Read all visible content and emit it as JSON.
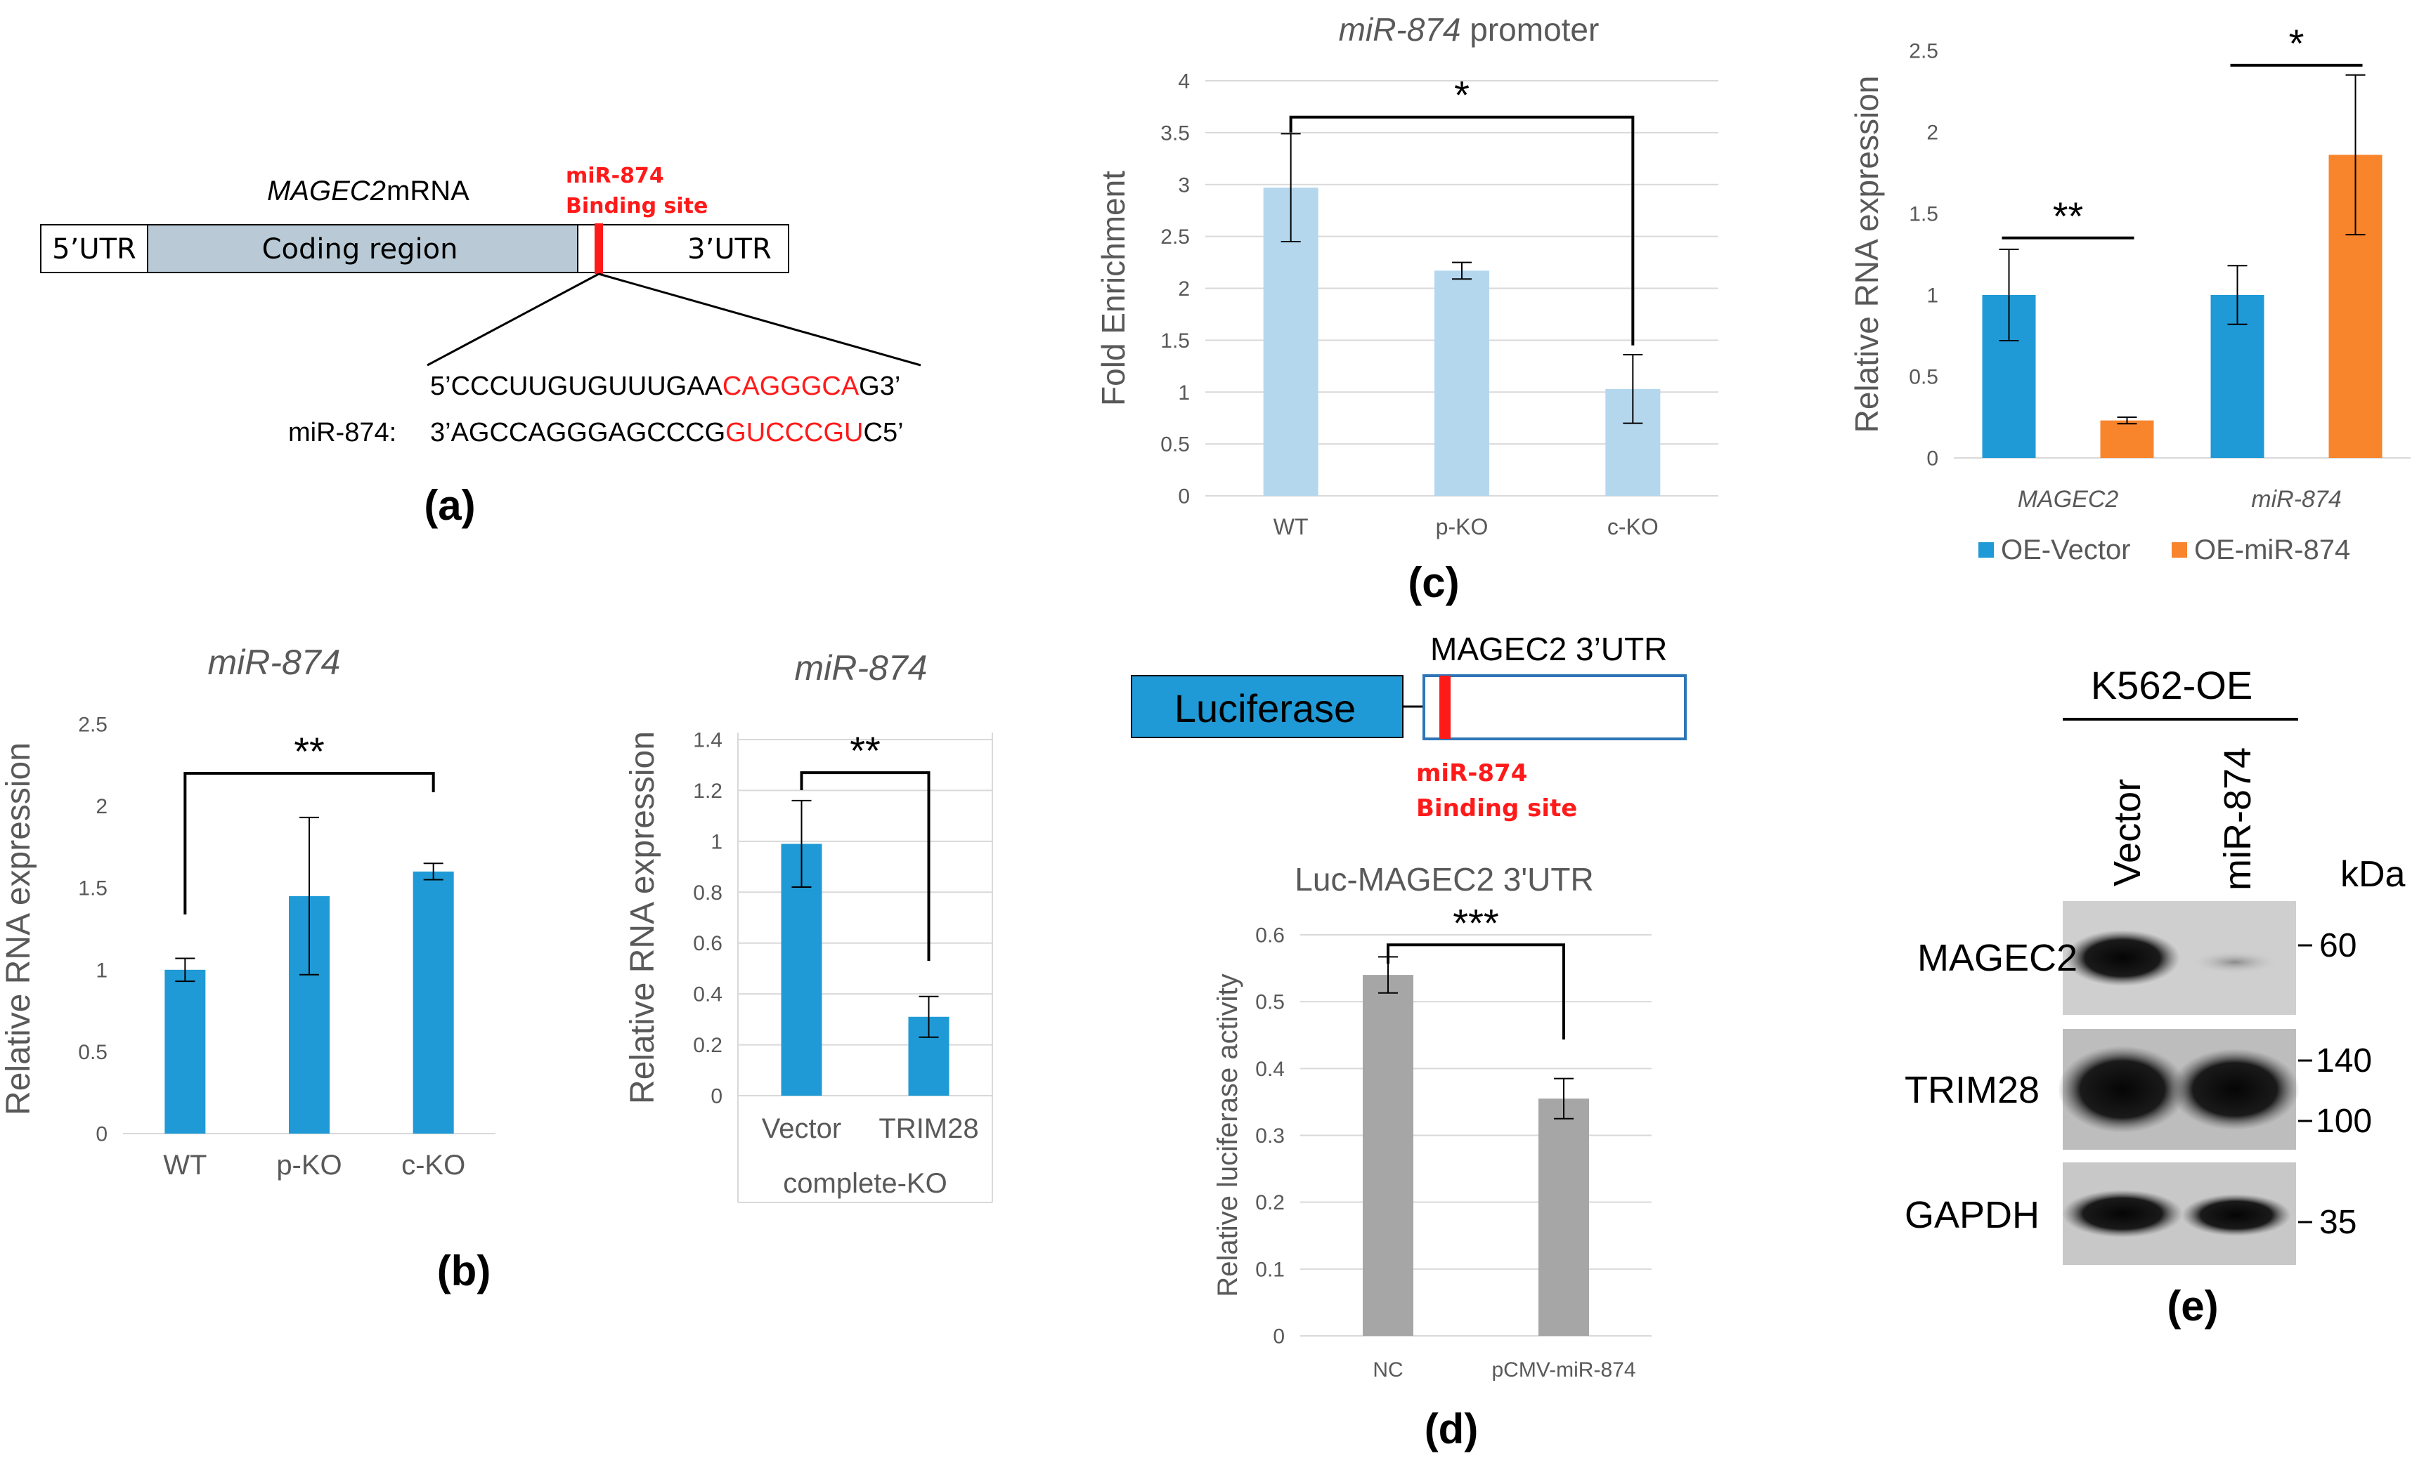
{
  "panel_labels": {
    "a": "(a)",
    "b": "(b)",
    "c": "(c)",
    "d": "(d)",
    "e": "(e)"
  },
  "colors": {
    "blue": "#1F9AD6",
    "lightblue": "#B4D7EE",
    "orange": "#F8842C",
    "gray": "#A6A6A6",
    "red": "#FF1A1A",
    "coding": "#B9CAD6"
  },
  "panel_a": {
    "title_italic": "MAGEC2",
    "title_rest": "mRNA",
    "utr5": "5’UTR",
    "coding": "Coding region",
    "utr3": "3’UTR",
    "binding_line1": "miR-874",
    "binding_line2": "Binding site",
    "seq_mrna_black": "5’CCCUUGUGUUUGAA",
    "seq_mrna_red": "CAGGGCA",
    "seq_mrna_end": "G3’",
    "mir_label": "miR-874:",
    "seq_mir_black": "3’AGCCAGGGAGCCCG",
    "seq_mir_red": "GUCCCGU",
    "seq_mir_end": "C5’"
  },
  "panel_d_construct": {
    "luciferase": "Luciferase",
    "utr_label": "MAGEC2 3’UTR",
    "binding_line1": "miR-874",
    "binding_line2": "Binding site"
  },
  "panel_e": {
    "title": "K562-OE",
    "lanes": [
      "Vector",
      "miR-874"
    ],
    "kda": "kDa",
    "proteins": [
      "MAGEC2",
      "TRIM28",
      "GAPDH"
    ],
    "markers": [
      "60",
      "140",
      "100",
      "35"
    ]
  },
  "chart_data": [
    {
      "id": "c",
      "type": "bar",
      "title_italic": "miR-874",
      "title_rest": "promoter",
      "ylabel": "Fold Enrichment",
      "categories": [
        "WT",
        "p-KO",
        "c-KO"
      ],
      "values": [
        2.97,
        2.17,
        1.03
      ],
      "errors": [
        0.52,
        0.08,
        0.33
      ],
      "ylim": [
        0,
        4
      ],
      "yticks": [
        "0",
        "0.5",
        "1",
        "1.5",
        "2",
        "2.5",
        "3",
        "3.5",
        "4"
      ],
      "grid": true,
      "significance": "*"
    },
    {
      "id": "c2",
      "type": "bar",
      "ylabel": "Relative RNA expression",
      "categories": [
        "MAGEC2",
        "miR-874"
      ],
      "series": [
        {
          "name": "OE-Vector",
          "values": [
            1.0,
            1.0
          ],
          "errors": [
            0.28,
            0.18
          ]
        },
        {
          "name": "OE-miR-874",
          "values": [
            0.23,
            1.86
          ],
          "errors": [
            0.02,
            0.49
          ]
        }
      ],
      "ylim": [
        0,
        2.5
      ],
      "yticks": [
        "0",
        "0.5",
        "1",
        "1.5",
        "2",
        "2.5"
      ],
      "grid": false,
      "significance": [
        "**",
        "*"
      ],
      "legend": "bottom"
    },
    {
      "id": "b1",
      "type": "bar",
      "title": "miR-874",
      "ylabel": "Relative RNA expression",
      "categories": [
        "WT",
        "p-KO",
        "c-KO"
      ],
      "values": [
        1.0,
        1.45,
        1.6
      ],
      "errors": [
        0.07,
        0.48,
        0.05
      ],
      "ylim": [
        0,
        2.5
      ],
      "yticks": [
        "0",
        "0.5",
        "1",
        "1.5",
        "2",
        "2.5"
      ],
      "grid": false,
      "significance": "**"
    },
    {
      "id": "b2",
      "type": "bar",
      "title": "miR-874",
      "ylabel": "Relative RNA expression",
      "categories": [
        "Vector",
        "TRIM28"
      ],
      "group_label": "complete-KO",
      "values": [
        0.99,
        0.31
      ],
      "errors": [
        0.17,
        0.08
      ],
      "ylim": [
        0,
        1.4
      ],
      "yticks": [
        "0",
        "0.2",
        "0.4",
        "0.6",
        "0.8",
        "1",
        "1.2",
        "1.4"
      ],
      "grid": true,
      "significance": "**"
    },
    {
      "id": "d",
      "type": "bar",
      "title": "Luc-MAGEC2 3'UTR",
      "ylabel": "Relative luciferase activity",
      "categories": [
        "NC",
        "pCMV-miR-874"
      ],
      "values": [
        0.54,
        0.355
      ],
      "errors": [
        0.027,
        0.03
      ],
      "ylim": [
        0,
        0.6
      ],
      "yticks": [
        "0",
        "0.1",
        "0.2",
        "0.3",
        "0.4",
        "0.5",
        "0.6"
      ],
      "grid": true,
      "significance": "***"
    }
  ]
}
